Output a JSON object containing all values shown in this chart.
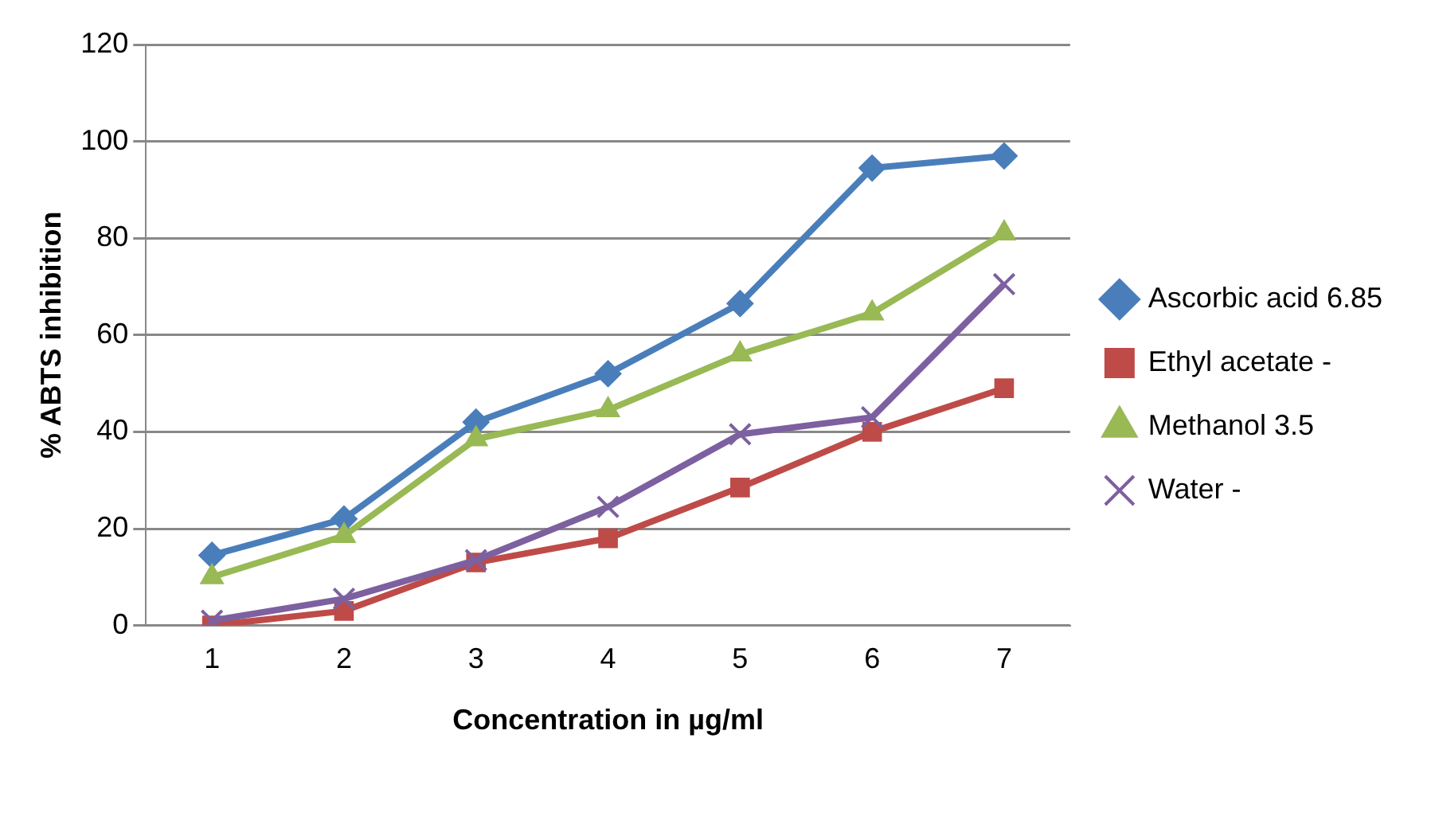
{
  "chart_data": {
    "type": "line",
    "xlabel": "Concentration in µg/ml",
    "ylabel": "% ABTS inhibition",
    "categories": [
      "1",
      "2",
      "3",
      "4",
      "5",
      "6",
      "7"
    ],
    "series": [
      {
        "name": "Ascorbic acid 6.85",
        "color": "#4a7ebb",
        "marker": "diamond",
        "values": [
          14.5,
          22,
          42,
          52,
          66.5,
          94.5,
          97
        ]
      },
      {
        "name": "Ethyl acetate -",
        "color": "#be4b48",
        "marker": "square",
        "values": [
          0,
          3,
          13,
          18,
          28.5,
          40,
          49
        ]
      },
      {
        "name": "Methanol 3.5",
        "color": "#98b954",
        "marker": "triangle",
        "values": [
          10,
          18.5,
          38.5,
          44.5,
          56,
          64.5,
          81
        ]
      },
      {
        "name": "Water -",
        "color": "#7d60a0",
        "marker": "cross",
        "values": [
          1,
          5.5,
          13.5,
          24.5,
          39.5,
          43,
          70.5
        ]
      }
    ],
    "ylim": [
      0,
      120
    ],
    "yticks": [
      0,
      20,
      40,
      60,
      80,
      100,
      120
    ],
    "grid": "y",
    "legend": "right",
    "line_style": "solid"
  }
}
